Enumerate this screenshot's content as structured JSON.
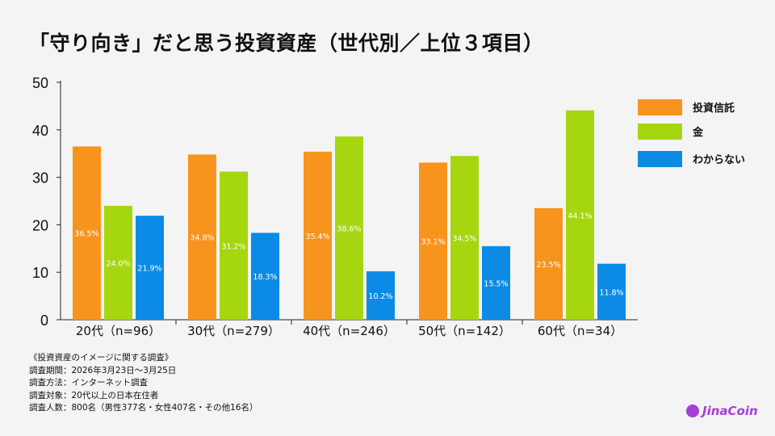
{
  "title": "「守り向き」だと思う投資資産（世代別／上位３項目）",
  "chart_data": {
    "type": "bar",
    "title": "「守り向き」だと思う投資資産（世代別／上位３項目）",
    "categories": [
      "20代（n=96）",
      "30代（n=279）",
      "40代（n=246）",
      "50代（n=142）",
      "60代（n=34）"
    ],
    "series": [
      {
        "name": "投資信託",
        "color": "#f7941d",
        "values": [
          36.5,
          34.8,
          35.4,
          33.1,
          23.5
        ]
      },
      {
        "name": "金",
        "color": "#a6d610",
        "values": [
          24.0,
          31.2,
          38.6,
          34.5,
          44.1
        ]
      },
      {
        "name": "わからない",
        "color": "#0c8be6",
        "values": [
          21.9,
          18.3,
          10.2,
          15.5,
          11.8
        ]
      }
    ],
    "ylim": [
      0,
      50
    ],
    "yticks": [
      0,
      10,
      20,
      30,
      40,
      50
    ],
    "data_label_suffix": "%",
    "grid": false,
    "legend": "right"
  },
  "notes": [
    "《投資資産のイメージに関する調査》",
    "調査期間：2026年3月23日〜3月25日",
    "調査方法：インターネット調査",
    "調査対象：20代以上の日本在住者",
    "調査人数：800名（男性377名・女性407名・その他16名）"
  ],
  "logo": "JinaCoin"
}
